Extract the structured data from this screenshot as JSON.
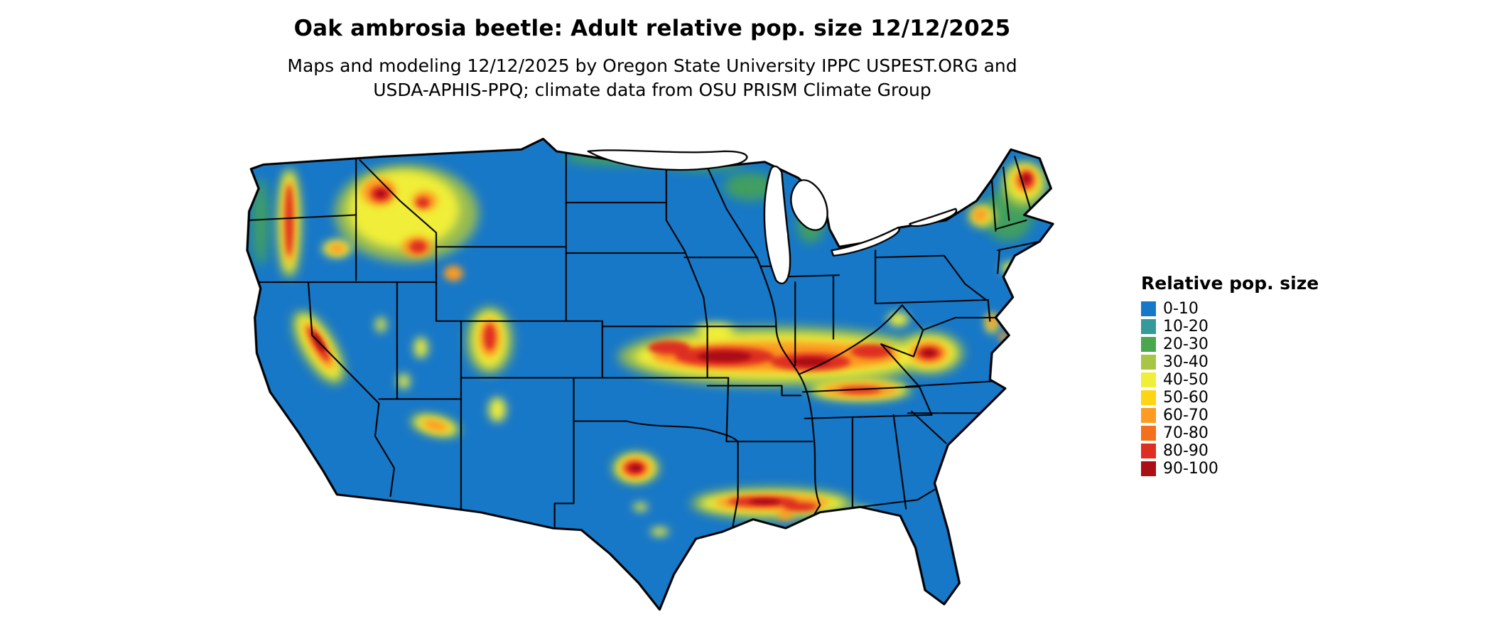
{
  "page": {
    "title": "Oak ambrosia beetle: Adult relative pop. size 12/12/2025",
    "subtitle_line1": "Maps and modeling 12/12/2025 by Oregon State University IPPC USPEST.ORG and",
    "subtitle_line2": "USDA-APHIS-PPQ; climate data from OSU PRISM Climate Group"
  },
  "map": {
    "region": "Continental United States",
    "base_color": "#1878c8",
    "border_color": "#000000",
    "water_color": "#ffffff"
  },
  "legend": {
    "title": "Relative pop. size",
    "entries": [
      {
        "label": "0-10",
        "color": "#1878c8"
      },
      {
        "label": "10-20",
        "color": "#36999a"
      },
      {
        "label": "20-30",
        "color": "#4aa64f"
      },
      {
        "label": "30-40",
        "color": "#a8c545"
      },
      {
        "label": "40-50",
        "color": "#f0ee38"
      },
      {
        "label": "50-60",
        "color": "#fed515"
      },
      {
        "label": "60-70",
        "color": "#fd9b22"
      },
      {
        "label": "70-80",
        "color": "#f3701e"
      },
      {
        "label": "80-90",
        "color": "#de2d22"
      },
      {
        "label": "90-100",
        "color": "#ab0e15"
      }
    ]
  },
  "chart_data": {
    "type": "heatmap",
    "title": "Oak ambrosia beetle: Adult relative pop. size 12/12/2025",
    "variable": "Adult relative population size",
    "value_range": [
      0,
      100
    ],
    "date": "12/12/2025",
    "region": "Continental United States",
    "legend_title": "Relative pop. size",
    "classes": [
      "0-10",
      "10-20",
      "20-30",
      "30-40",
      "40-50",
      "50-60",
      "60-70",
      "70-80",
      "80-90",
      "90-100"
    ],
    "class_colors": [
      "#1878c8",
      "#36999a",
      "#4aa64f",
      "#a8c545",
      "#f0ee38",
      "#fed515",
      "#fd9b22",
      "#f3701e",
      "#de2d22",
      "#ab0e15"
    ],
    "high_value_regions": [
      "Washington/Oregon Cascades",
      "Northern Rockies (Idaho / western Montana / Wyoming)",
      "Sierra Nevada (California)",
      "Colorado Rockies",
      "Central band from Kansas through Missouri, Illinois, Indiana into Kentucky",
      "Appalachians (West Virginia / Virginia)",
      "Kentucky/Tennessee valleys",
      "Texas Hill Country and Gulf Coast of Texas/Louisiana/Mississippi",
      "Maine and northern New England"
    ],
    "low_value_regions": [
      "Great Basin and desert Southwest",
      "Northern and central Plains",
      "Southeast coastal plain",
      "Florida peninsula"
    ]
  }
}
